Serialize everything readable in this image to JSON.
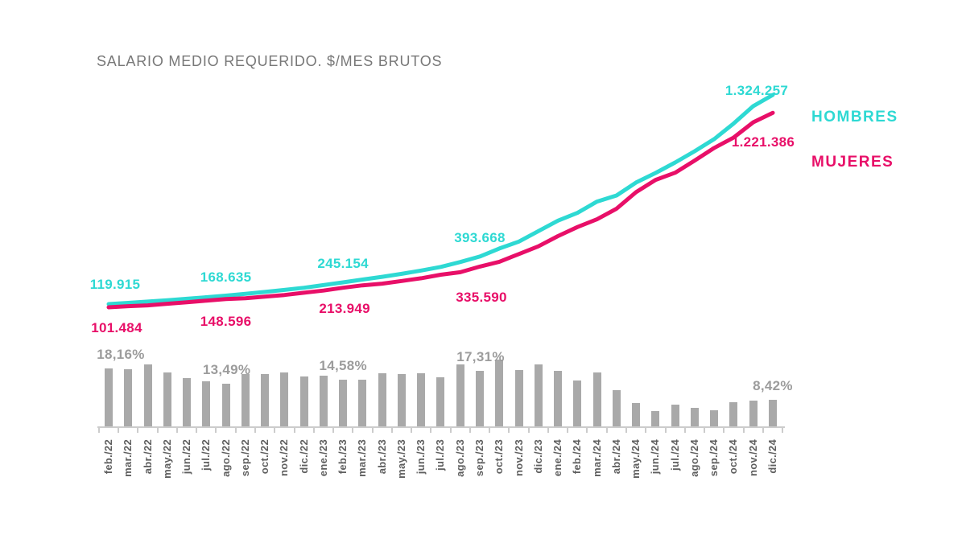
{
  "title": "SALARIO MEDIO REQUERIDO. $/MES BRUTOS",
  "legend": {
    "hombres": "HOMBRES",
    "mujeres": "MUJERES"
  },
  "colors": {
    "hombres": "#2ed9d3",
    "mujeres": "#e80f68",
    "bars": "#a9a9a9",
    "gap_labels": "#9c9c9c",
    "title_text": "#787878",
    "axis_labels": "#5f5f5f",
    "axis_line": "#cccccc"
  },
  "chart_data": {
    "type": "combo-line-bar",
    "title": "SALARIO MEDIO REQUERIDO. $/MES BRUTOS",
    "categories": [
      "feb./22",
      "mar./22",
      "abr./22",
      "may./22",
      "jun./22",
      "jul./22",
      "ago./22",
      "sep./22",
      "oct./22",
      "nov./22",
      "dic./22",
      "ene./23",
      "feb./23",
      "mar./23",
      "abr./23",
      "may./23",
      "jun./23",
      "jul./23",
      "ago./23",
      "sep./23",
      "oct./23",
      "nov./23",
      "dic./23",
      "ene./24",
      "feb./24",
      "mar./24",
      "abr./24",
      "may./24",
      "jun./24",
      "jul./24",
      "ago./24",
      "sep./24",
      "oct./24",
      "nov./24",
      "dic./24"
    ],
    "line_series": [
      {
        "name": "HOMBRES",
        "color": "#2ed9d3",
        "values": [
          119915,
          127000,
          134500,
          142000,
          150500,
          159500,
          168635,
          179000,
          190000,
          201500,
          214000,
          229000,
          245154,
          261000,
          277000,
          294000,
          313000,
          334000,
          362000,
          393668,
          440000,
          480000,
          540000,
          600000,
          645000,
          710000,
          745000,
          820000,
          875000,
          935000,
          1000000,
          1070000,
          1160000,
          1260000,
          1324257
        ]
      },
      {
        "name": "MUJERES",
        "color": "#e80f68",
        "values": [
          101484,
          107800,
          112700,
          121600,
          130600,
          139900,
          148596,
          153900,
          163100,
          172400,
          185000,
          197600,
          213949,
          227700,
          237600,
          252800,
          268400,
          289200,
          303200,
          335590,
          363600,
          408200,
          452300,
          511500,
          563800,
          607900,
          669400,
          764200,
          834900,
          876300,
          946100,
          1019000,
          1079100,
          1166700,
          1221386
        ]
      }
    ],
    "bar_series": {
      "color": "#a9a9a9",
      "values": [
        18.16,
        17.8,
        19.3,
        16.8,
        15.2,
        14.0,
        13.49,
        16.3,
        16.5,
        16.9,
        15.7,
        15.9,
        14.58,
        14.6,
        16.6,
        16.3,
        16.6,
        15.5,
        19.4,
        17.31,
        21.0,
        17.6,
        19.4,
        17.3,
        14.4,
        16.8,
        11.3,
        7.3,
        4.8,
        6.7,
        5.7,
        5.0,
        7.5,
        8.0,
        8.42
      ]
    },
    "callouts": {
      "indices": [
        0,
        6,
        12,
        19,
        34
      ],
      "hombres": [
        "119.915",
        "168.635",
        "245.154",
        "393.668",
        "1.324.257"
      ],
      "mujeres": [
        "101.484",
        "148.596",
        "213.949",
        "335.590",
        "1.221.386"
      ],
      "gap": [
        "18,16%",
        "13,49%",
        "14,58%",
        "17,31%",
        "8,42%"
      ]
    },
    "legend": [
      "HOMBRES",
      "MUJERES"
    ],
    "legend_position": "right",
    "ylim_line": [
      100000,
      1350000
    ],
    "ylim_bar": [
      0,
      21
    ],
    "grid": false
  }
}
